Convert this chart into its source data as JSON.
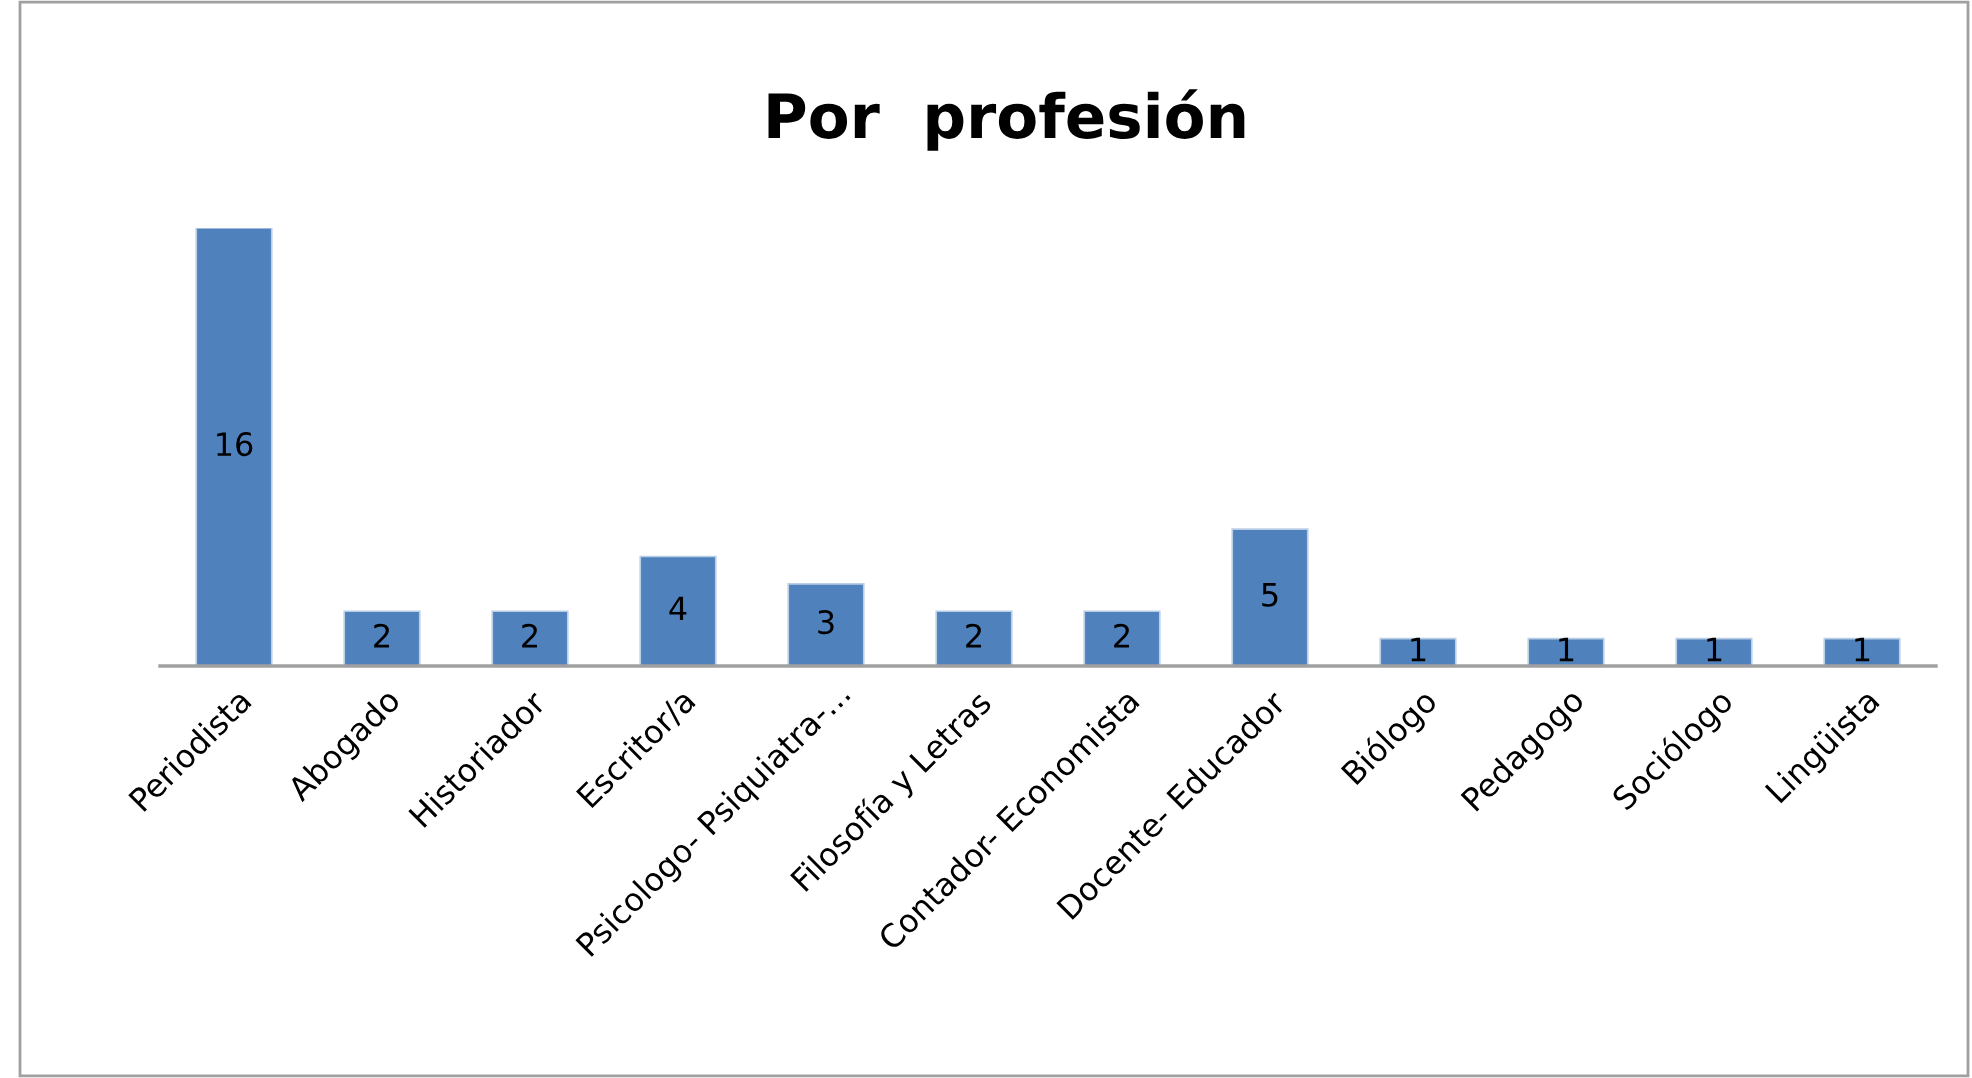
{
  "chart_data": {
    "type": "bar",
    "title": "Por  profesión",
    "categories": [
      "Periodista",
      "Abogado",
      "Historiador",
      "Escritor/a",
      "Psicologo- Psiquiatra-...",
      "Filosofía y Letras",
      "Contador- Economista",
      "Docente- Educador",
      "Biólogo",
      "Pedagogo",
      "Sociólogo",
      "Lingüista"
    ],
    "values": [
      16,
      2,
      2,
      4,
      3,
      2,
      2,
      5,
      1,
      1,
      1,
      1
    ],
    "data_labels": true,
    "tick_labels": "x",
    "color": "#4f81bd"
  }
}
